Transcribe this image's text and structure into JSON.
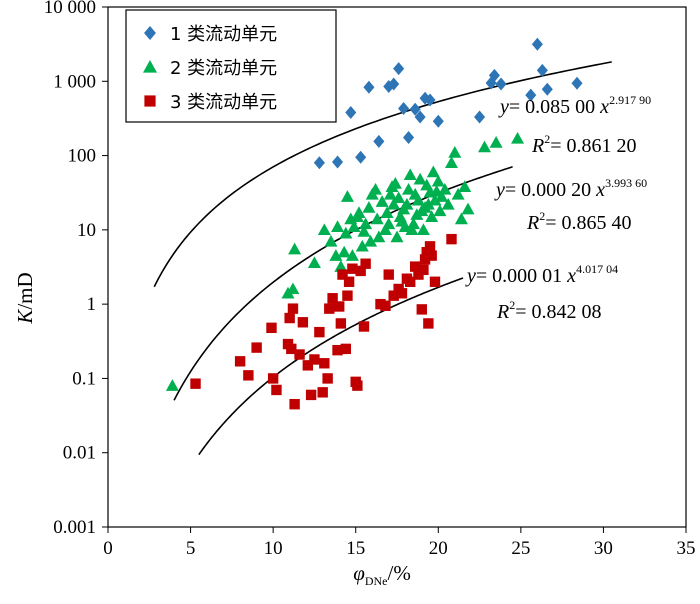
{
  "chart_data": {
    "type": "scatter",
    "xlabel": {
      "symbol": "φ",
      "subscript": "DNe",
      "unit": "/%"
    },
    "ylabel": {
      "symbol": "K",
      "unit": "/mD"
    },
    "xlim": [
      0,
      35
    ],
    "ylim_log": [
      0.001,
      10000
    ],
    "x_ticks": [
      0,
      5,
      10,
      15,
      20,
      25,
      30,
      35
    ],
    "x_tick_labels": [
      "0",
      "5",
      "10",
      "15",
      "20",
      "25",
      "30",
      "35"
    ],
    "y_ticks": [
      0.001,
      0.01,
      0.1,
      1,
      10,
      100,
      1000,
      10000
    ],
    "y_tick_labels": [
      "0.001",
      "0.01",
      "0.1",
      "1",
      "10",
      "100",
      "1 000",
      "10 000"
    ],
    "legend_position": "top-left",
    "series": [
      {
        "name": "1 类流动单元",
        "legend_label": "1 类流动单元",
        "marker": "diamond",
        "color": "#2e75b6",
        "points": [
          [
            12.8,
            80
          ],
          [
            13.9,
            82
          ],
          [
            14.7,
            380
          ],
          [
            15.3,
            95
          ],
          [
            15.8,
            830
          ],
          [
            16.4,
            155
          ],
          [
            17.0,
            850
          ],
          [
            17.3,
            920
          ],
          [
            17.6,
            1480
          ],
          [
            17.9,
            430
          ],
          [
            18.2,
            175
          ],
          [
            18.6,
            420
          ],
          [
            18.9,
            330
          ],
          [
            19.2,
            590
          ],
          [
            19.5,
            560
          ],
          [
            20.0,
            290
          ],
          [
            22.5,
            330
          ],
          [
            23.2,
            950
          ],
          [
            23.4,
            1200
          ],
          [
            23.8,
            920
          ],
          [
            25.6,
            650
          ],
          [
            26.0,
            3150
          ],
          [
            26.3,
            1400
          ],
          [
            26.6,
            780
          ],
          [
            28.4,
            940
          ]
        ]
      },
      {
        "name": "2 类流动单元",
        "legend_label": "2 类流动单元",
        "marker": "triangle",
        "color": "#00b050",
        "points": [
          [
            3.9,
            0.08
          ],
          [
            10.9,
            1.4
          ],
          [
            11.2,
            1.6
          ],
          [
            11.3,
            5.5
          ],
          [
            12.5,
            3.6
          ],
          [
            13.1,
            10
          ],
          [
            13.5,
            7
          ],
          [
            13.8,
            4.5
          ],
          [
            13.9,
            11
          ],
          [
            14.1,
            3.2
          ],
          [
            14.3,
            5
          ],
          [
            14.4,
            9
          ],
          [
            14.5,
            28
          ],
          [
            14.7,
            14
          ],
          [
            14.8,
            4.5
          ],
          [
            14.9,
            11
          ],
          [
            15.1,
            15
          ],
          [
            15.2,
            17
          ],
          [
            15.4,
            6
          ],
          [
            15.5,
            9.5
          ],
          [
            15.6,
            12
          ],
          [
            15.8,
            20
          ],
          [
            15.9,
            7
          ],
          [
            16.0,
            30
          ],
          [
            16.2,
            35
          ],
          [
            16.3,
            14
          ],
          [
            16.4,
            8
          ],
          [
            16.6,
            24
          ],
          [
            16.8,
            10
          ],
          [
            16.9,
            17
          ],
          [
            17.0,
            12
          ],
          [
            17.1,
            30
          ],
          [
            17.2,
            38
          ],
          [
            17.3,
            22
          ],
          [
            17.4,
            42
          ],
          [
            17.5,
            8
          ],
          [
            17.6,
            27
          ],
          [
            17.7,
            15
          ],
          [
            17.8,
            13
          ],
          [
            17.9,
            19
          ],
          [
            18.0,
            11
          ],
          [
            18.1,
            22
          ],
          [
            18.2,
            35
          ],
          [
            18.3,
            55
          ],
          [
            18.4,
            10
          ],
          [
            18.5,
            12
          ],
          [
            18.6,
            30
          ],
          [
            18.7,
            16
          ],
          [
            18.8,
            25
          ],
          [
            18.9,
            48
          ],
          [
            19.0,
            18
          ],
          [
            19.1,
            10
          ],
          [
            19.2,
            20
          ],
          [
            19.3,
            40
          ],
          [
            19.4,
            22
          ],
          [
            19.5,
            32
          ],
          [
            19.6,
            15
          ],
          [
            19.7,
            60
          ],
          [
            19.8,
            25
          ],
          [
            19.9,
            33
          ],
          [
            20.0,
            45
          ],
          [
            20.1,
            18
          ],
          [
            20.2,
            28
          ],
          [
            20.4,
            35
          ],
          [
            20.6,
            22
          ],
          [
            20.8,
            80
          ],
          [
            21.0,
            110
          ],
          [
            21.2,
            30
          ],
          [
            21.4,
            14
          ],
          [
            21.6,
            38
          ],
          [
            21.8,
            19
          ],
          [
            22.8,
            130
          ],
          [
            23.5,
            150
          ],
          [
            24.8,
            170
          ]
        ]
      },
      {
        "name": "3 类流动单元",
        "legend_label": "3 类流动单元",
        "marker": "square",
        "color": "#c00000",
        "points": [
          [
            5.3,
            0.085
          ],
          [
            8.0,
            0.17
          ],
          [
            8.5,
            0.11
          ],
          [
            9.0,
            0.26
          ],
          [
            9.9,
            0.48
          ],
          [
            10.0,
            0.1
          ],
          [
            10.2,
            0.07
          ],
          [
            10.9,
            0.29
          ],
          [
            11.0,
            0.65
          ],
          [
            11.1,
            0.25
          ],
          [
            11.2,
            0.87
          ],
          [
            11.3,
            0.045
          ],
          [
            11.6,
            0.21
          ],
          [
            11.8,
            0.57
          ],
          [
            12.1,
            0.15
          ],
          [
            12.3,
            0.06
          ],
          [
            12.5,
            0.18
          ],
          [
            12.8,
            0.42
          ],
          [
            13.0,
            0.065
          ],
          [
            13.1,
            0.16
          ],
          [
            13.3,
            0.1
          ],
          [
            13.4,
            0.87
          ],
          [
            13.6,
            1.2
          ],
          [
            13.9,
            0.24
          ],
          [
            14.0,
            0.93
          ],
          [
            14.1,
            0.55
          ],
          [
            14.2,
            2.5
          ],
          [
            14.4,
            0.25
          ],
          [
            14.5,
            1.3
          ],
          [
            14.6,
            2.0
          ],
          [
            14.8,
            3.0
          ],
          [
            15.0,
            0.09
          ],
          [
            15.1,
            0.08
          ],
          [
            15.3,
            2.8
          ],
          [
            15.5,
            0.5
          ],
          [
            15.6,
            3.5
          ],
          [
            16.5,
            1.0
          ],
          [
            16.8,
            0.95
          ],
          [
            17.0,
            2.5
          ],
          [
            17.3,
            1.3
          ],
          [
            17.6,
            1.6
          ],
          [
            17.8,
            1.4
          ],
          [
            18.1,
            2.2
          ],
          [
            18.3,
            2.0
          ],
          [
            18.6,
            3.2
          ],
          [
            18.8,
            2.5
          ],
          [
            19.0,
            0.85
          ],
          [
            19.1,
            2.9
          ],
          [
            19.2,
            4.0
          ],
          [
            19.3,
            5.0
          ],
          [
            19.4,
            0.55
          ],
          [
            19.5,
            6.0
          ],
          [
            19.6,
            4.5
          ],
          [
            19.8,
            2.0
          ],
          [
            20.8,
            7.5
          ]
        ]
      }
    ],
    "fit_curves": [
      {
        "series": "1 类流动单元",
        "coef_text": "0.085 00",
        "a": 0.085,
        "b": 2.9179,
        "exp_text": "2.917 90",
        "r2_text": "0.861 20",
        "x_range": [
          2.8,
          30.5
        ]
      },
      {
        "series": "2 类流动单元",
        "coef_text": "0.000 20",
        "a": 0.0002,
        "b": 3.9936,
        "exp_text": "3.993 60",
        "r2_text": "0.865 40",
        "x_range": [
          4.0,
          24.5
        ]
      },
      {
        "series": "3 类流动单元",
        "coef_text": "0.000 01",
        "a": 1e-05,
        "b": 4.01704,
        "exp_text": "4.017 04",
        "r2_text": "0.842 08",
        "x_range": [
          5.5,
          21.5
        ]
      }
    ],
    "annotation_y_label": "y",
    "annotation_x_label": "x",
    "annotation_r_label": "R",
    "annotation_r_sup": "2",
    "annotation_eq": "="
  }
}
